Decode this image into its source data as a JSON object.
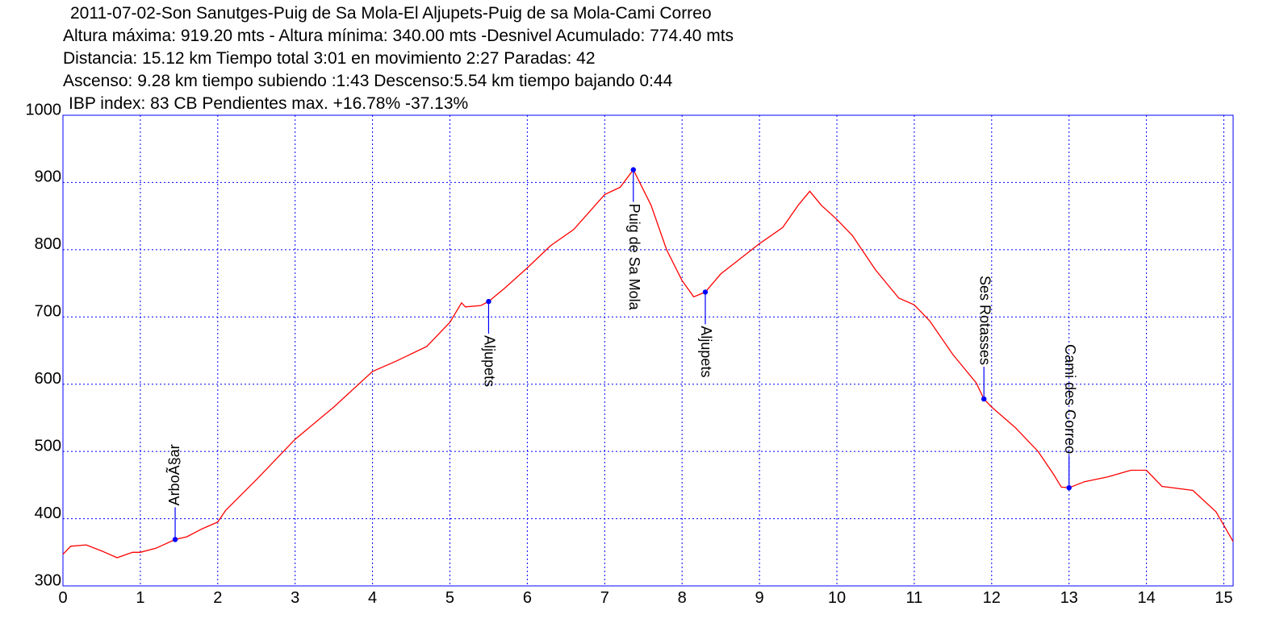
{
  "chart_data": {
    "type": "line",
    "title": "2011-07-02-Son Sanutges-Puig de Sa Mola-El Aljupets-Puig de sa Mola-Cami Correo",
    "subtitle_lines": [
      "Altura máxima: 919.20 mts - Altura mínima: 340.00 mts -Desnivel Acumulado: 774.40 mts",
      "Distancia: 15.12 km  Tiempo total 3:01  en movimiento 2:27 Paradas: 42",
      "Ascenso: 9.28 km  tiempo subiendo :1:43  Descenso:5.54 km tiempo bajando 0:44",
      "IBP index: 83 CB  Pendientes max. +16.78%  -37.13%"
    ],
    "x": [
      0,
      0.1,
      0.3,
      0.5,
      0.7,
      0.9,
      1.0,
      1.2,
      1.45,
      1.6,
      1.8,
      2.0,
      2.1,
      2.5,
      3.0,
      3.5,
      4.0,
      4.3,
      4.7,
      5.0,
      5.15,
      5.2,
      5.4,
      5.5,
      5.7,
      6.0,
      6.3,
      6.6,
      7.0,
      7.2,
      7.37,
      7.6,
      7.8,
      8.0,
      8.15,
      8.3,
      8.5,
      8.7,
      9.0,
      9.3,
      9.5,
      9.65,
      9.8,
      10.0,
      10.2,
      10.5,
      10.8,
      11.0,
      11.2,
      11.5,
      11.8,
      11.9,
      12.0,
      12.3,
      12.6,
      12.8,
      12.9,
      13.0,
      13.2,
      13.5,
      13.8,
      14.0,
      14.2,
      14.6,
      14.9,
      15.12
    ],
    "values": [
      347,
      359,
      361,
      352,
      342,
      350,
      350,
      356,
      369,
      373,
      385,
      395,
      412,
      458,
      518,
      566,
      619,
      634,
      656,
      692,
      721,
      715,
      717,
      723,
      742,
      773,
      806,
      830,
      882,
      893,
      919,
      866,
      800,
      754,
      730,
      737,
      764,
      782,
      809,
      833,
      866,
      887,
      866,
      845,
      821,
      770,
      728,
      718,
      694,
      644,
      602,
      578,
      566,
      536,
      500,
      466,
      447,
      446,
      455,
      462,
      472,
      472,
      448,
      442,
      410,
      366
    ],
    "color": "#ff0000",
    "marker_color": "#0000ff",
    "grid_color": "#0000ff",
    "grid": true,
    "annotations": [
      {
        "label": "ArboÃ§ar",
        "x": 1.45,
        "y": 369,
        "placement": "above-up"
      },
      {
        "label": "Aljupets",
        "x": 5.5,
        "y": 723,
        "placement": "below"
      },
      {
        "label": "Puig de Sa Mola",
        "x": 7.37,
        "y": 919,
        "placement": "below"
      },
      {
        "label": "Aljupets",
        "x": 8.3,
        "y": 737,
        "placement": "below"
      },
      {
        "label": "Ses Rotasses",
        "x": 11.9,
        "y": 578,
        "placement": "above-down"
      },
      {
        "label": "Cami des Correo",
        "x": 13.0,
        "y": 446,
        "placement": "above-down"
      }
    ],
    "xlim": [
      0,
      15.12
    ],
    "ylim": [
      300,
      1000
    ],
    "xticks": [
      0,
      1,
      2,
      3,
      4,
      5,
      6,
      7,
      8,
      9,
      10,
      11,
      12,
      13,
      14,
      15
    ],
    "yticks": [
      300,
      400,
      500,
      600,
      700,
      800,
      900,
      1000
    ]
  }
}
